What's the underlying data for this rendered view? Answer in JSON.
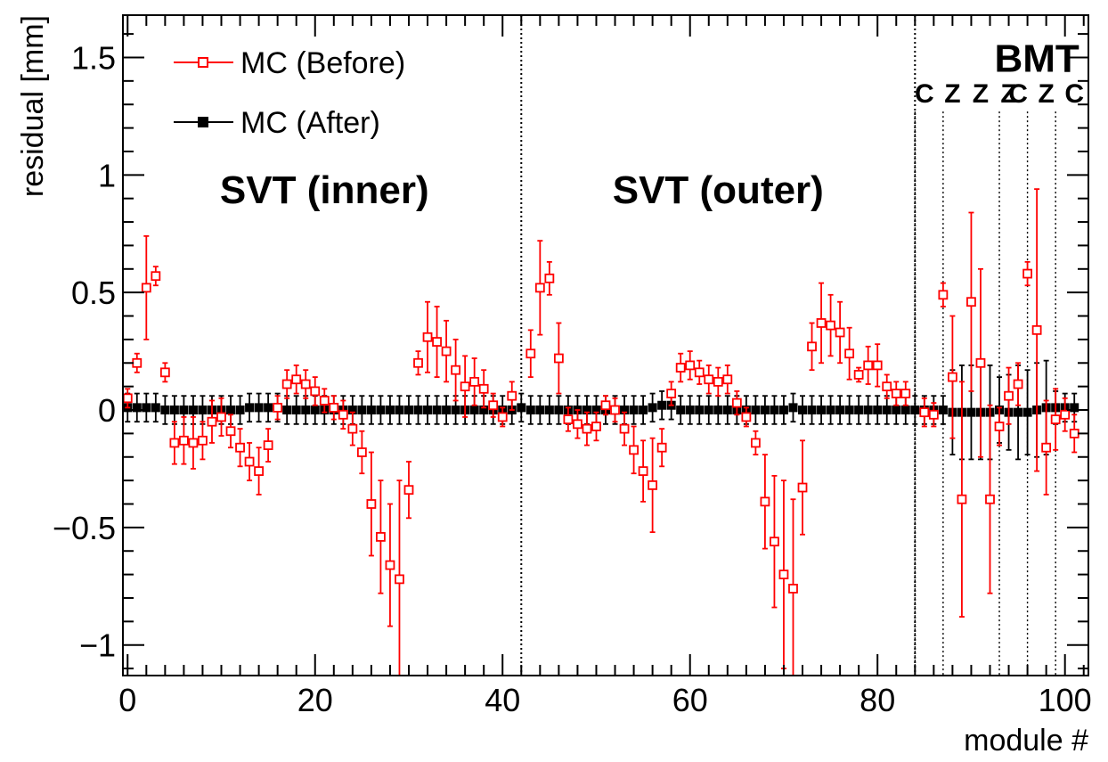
{
  "chart_data": {
    "type": "scatter",
    "title": "",
    "xlabel": "module #",
    "ylabel": "residual [mm]",
    "xlim": [
      -0.5,
      102.5
    ],
    "ylim": [
      -1.13,
      1.68
    ],
    "x_ticks": [
      0,
      20,
      40,
      60,
      80,
      100
    ],
    "x_tick_labels": [
      "0",
      "20",
      "40",
      "60",
      "80",
      "100"
    ],
    "y_ticks": [
      -1,
      -0.5,
      0,
      0.5,
      1,
      1.5
    ],
    "y_tick_labels": [
      "−1",
      "−0.5",
      "0",
      "0.5",
      "1",
      "1.5"
    ],
    "grid": false,
    "legend_position": "top-left",
    "region_labels": [
      {
        "text": "SVT (inner)",
        "x": 21,
        "y": 0.88
      },
      {
        "text": "SVT (outer)",
        "x": 63,
        "y": 0.88
      }
    ],
    "detector_label": {
      "text": "BMT",
      "x": 97,
      "y": 1.5
    },
    "boundaries": [
      42,
      84
    ],
    "bmt_boundaries": [
      84,
      87,
      93,
      96,
      99
    ],
    "bmt_sublabels": [
      {
        "text": "C",
        "x": 85
      },
      {
        "text": "Z",
        "x": 88
      },
      {
        "text": "Z",
        "x": 91
      },
      {
        "text": "Z",
        "x": 94
      },
      {
        "text": "C",
        "x": 95
      },
      {
        "text": "Z",
        "x": 98
      },
      {
        "text": "C",
        "x": 101
      }
    ],
    "series": [
      {
        "name": "MC (Before)",
        "color": "#ff0000",
        "marker": "open-square",
        "points": [
          [
            0,
            0.05,
            0.04
          ],
          [
            1,
            0.2,
            0.04
          ],
          [
            2,
            0.52,
            0.22
          ],
          [
            3,
            0.57,
            0.04
          ],
          [
            4,
            0.16,
            0.04
          ],
          [
            5,
            -0.14,
            0.09
          ],
          [
            6,
            -0.13,
            0.1
          ],
          [
            7,
            -0.14,
            0.11
          ],
          [
            8,
            -0.13,
            0.08
          ],
          [
            9,
            -0.05,
            0.09
          ],
          [
            10,
            -0.03,
            0.08
          ],
          [
            11,
            -0.09,
            0.07
          ],
          [
            12,
            -0.16,
            0.08
          ],
          [
            13,
            -0.22,
            0.08
          ],
          [
            14,
            -0.26,
            0.1
          ],
          [
            15,
            -0.15,
            0.07
          ],
          [
            16,
            0.01,
            0.05
          ],
          [
            17,
            0.11,
            0.06
          ],
          [
            18,
            0.13,
            0.06
          ],
          [
            19,
            0.11,
            0.06
          ],
          [
            20,
            0.08,
            0.06
          ],
          [
            21,
            0.04,
            0.05
          ],
          [
            22,
            0.01,
            0.05
          ],
          [
            23,
            -0.02,
            0.06
          ],
          [
            24,
            -0.08,
            0.07
          ],
          [
            25,
            -0.18,
            0.09
          ],
          [
            26,
            -0.4,
            0.22
          ],
          [
            27,
            -0.54,
            0.24
          ],
          [
            28,
            -0.66,
            0.26
          ],
          [
            29,
            -0.72,
            0.42
          ],
          [
            30,
            -0.34,
            0.12
          ],
          [
            31,
            0.2,
            0.05
          ],
          [
            32,
            0.31,
            0.15
          ],
          [
            33,
            0.29,
            0.15
          ],
          [
            34,
            0.25,
            0.13
          ],
          [
            35,
            0.17,
            0.13
          ],
          [
            36,
            0.1,
            0.13
          ],
          [
            37,
            0.12,
            0.1
          ],
          [
            38,
            0.09,
            0.08
          ],
          [
            39,
            0.02,
            0.05
          ],
          [
            40,
            -0.03,
            0.04
          ],
          [
            41,
            0.06,
            0.06
          ],
          [
            42,
            0.0,
            0.0
          ],
          [
            43,
            0.24,
            0.1
          ],
          [
            44,
            0.52,
            0.2
          ],
          [
            45,
            0.56,
            0.07
          ],
          [
            46,
            0.22,
            0.15
          ],
          [
            47,
            -0.04,
            0.05
          ],
          [
            48,
            -0.06,
            0.06
          ],
          [
            49,
            -0.08,
            0.07
          ],
          [
            50,
            -0.07,
            0.06
          ],
          [
            51,
            0.02,
            0.04
          ],
          [
            52,
            0.0,
            0.05
          ],
          [
            53,
            -0.08,
            0.07
          ],
          [
            54,
            -0.17,
            0.1
          ],
          [
            55,
            -0.26,
            0.13
          ],
          [
            56,
            -0.32,
            0.2
          ],
          [
            57,
            -0.16,
            0.08
          ],
          [
            58,
            0.07,
            0.05
          ],
          [
            59,
            0.18,
            0.06
          ],
          [
            60,
            0.19,
            0.06
          ],
          [
            61,
            0.16,
            0.05
          ],
          [
            62,
            0.13,
            0.06
          ],
          [
            63,
            0.12,
            0.06
          ],
          [
            64,
            0.13,
            0.06
          ],
          [
            65,
            0.03,
            0.05
          ],
          [
            66,
            -0.03,
            0.04
          ],
          [
            67,
            -0.14,
            0.05
          ],
          [
            68,
            -0.39,
            0.2
          ],
          [
            69,
            -0.56,
            0.28
          ],
          [
            70,
            -0.7,
            0.4
          ],
          [
            71,
            -0.76,
            0.38
          ],
          [
            72,
            -0.33,
            0.2
          ],
          [
            73,
            0.27,
            0.1
          ],
          [
            74,
            0.37,
            0.17
          ],
          [
            75,
            0.36,
            0.13
          ],
          [
            76,
            0.33,
            0.13
          ],
          [
            77,
            0.24,
            0.11
          ],
          [
            78,
            0.15,
            0.03
          ],
          [
            79,
            0.19,
            0.08
          ],
          [
            80,
            0.19,
            0.09
          ],
          [
            81,
            0.1,
            0.05
          ],
          [
            82,
            0.07,
            0.05
          ],
          [
            83,
            0.07,
            0.05
          ],
          [
            84,
            0.0,
            0.0
          ],
          [
            85,
            -0.01,
            0.06
          ],
          [
            86,
            -0.02,
            0.05
          ],
          [
            87,
            0.49,
            0.05
          ],
          [
            88,
            0.14,
            0.26
          ],
          [
            89,
            -0.38,
            0.5
          ],
          [
            90,
            0.46,
            0.38
          ],
          [
            91,
            0.2,
            0.4
          ],
          [
            92,
            -0.38,
            0.4
          ],
          [
            93,
            -0.07,
            0.08
          ],
          [
            94,
            0.06,
            0.12
          ],
          [
            95,
            0.11,
            0.09
          ],
          [
            96,
            0.58,
            0.05
          ],
          [
            97,
            0.34,
            0.6
          ],
          [
            98,
            -0.16,
            0.2
          ],
          [
            99,
            -0.04,
            0.13
          ],
          [
            100,
            -0.02,
            0.07
          ],
          [
            101,
            -0.1,
            0.08
          ]
        ]
      },
      {
        "name": "MC (After)",
        "color": "#000000",
        "marker": "filled-square",
        "points": [
          [
            0,
            0.01,
            0.06
          ],
          [
            1,
            0.01,
            0.06
          ],
          [
            2,
            0.01,
            0.06
          ],
          [
            3,
            0.01,
            0.06
          ],
          [
            4,
            0.0,
            0.06
          ],
          [
            5,
            0.0,
            0.06
          ],
          [
            6,
            0.0,
            0.06
          ],
          [
            7,
            0.0,
            0.06
          ],
          [
            8,
            0.0,
            0.06
          ],
          [
            9,
            0.0,
            0.06
          ],
          [
            10,
            0.0,
            0.06
          ],
          [
            11,
            0.0,
            0.06
          ],
          [
            12,
            0.0,
            0.06
          ],
          [
            13,
            0.01,
            0.06
          ],
          [
            14,
            0.01,
            0.06
          ],
          [
            15,
            0.01,
            0.06
          ],
          [
            16,
            0.01,
            0.06
          ],
          [
            17,
            0.0,
            0.06
          ],
          [
            18,
            0.0,
            0.06
          ],
          [
            19,
            0.0,
            0.06
          ],
          [
            20,
            0.0,
            0.06
          ],
          [
            21,
            0.0,
            0.06
          ],
          [
            22,
            0.0,
            0.06
          ],
          [
            23,
            0.0,
            0.06
          ],
          [
            24,
            0.0,
            0.06
          ],
          [
            25,
            0.0,
            0.06
          ],
          [
            26,
            0.0,
            0.06
          ],
          [
            27,
            0.0,
            0.06
          ],
          [
            28,
            0.0,
            0.06
          ],
          [
            29,
            0.0,
            0.06
          ],
          [
            30,
            0.0,
            0.06
          ],
          [
            31,
            0.0,
            0.06
          ],
          [
            32,
            0.0,
            0.06
          ],
          [
            33,
            0.0,
            0.06
          ],
          [
            34,
            0.0,
            0.06
          ],
          [
            35,
            0.0,
            0.06
          ],
          [
            36,
            0.0,
            0.06
          ],
          [
            37,
            0.0,
            0.06
          ],
          [
            38,
            0.0,
            0.06
          ],
          [
            39,
            0.0,
            0.06
          ],
          [
            40,
            0.0,
            0.06
          ],
          [
            41,
            0.0,
            0.06
          ],
          [
            42,
            0.01,
            0.06
          ],
          [
            43,
            0.0,
            0.06
          ],
          [
            44,
            0.0,
            0.06
          ],
          [
            45,
            0.0,
            0.06
          ],
          [
            46,
            0.0,
            0.06
          ],
          [
            47,
            0.0,
            0.06
          ],
          [
            48,
            0.0,
            0.06
          ],
          [
            49,
            0.0,
            0.06
          ],
          [
            50,
            0.0,
            0.06
          ],
          [
            51,
            0.0,
            0.06
          ],
          [
            52,
            0.0,
            0.06
          ],
          [
            53,
            0.0,
            0.06
          ],
          [
            54,
            0.0,
            0.06
          ],
          [
            55,
            0.0,
            0.06
          ],
          [
            56,
            0.01,
            0.06
          ],
          [
            57,
            0.02,
            0.06
          ],
          [
            58,
            0.02,
            0.06
          ],
          [
            59,
            0.0,
            0.06
          ],
          [
            60,
            0.0,
            0.06
          ],
          [
            61,
            0.0,
            0.06
          ],
          [
            62,
            0.0,
            0.06
          ],
          [
            63,
            0.0,
            0.06
          ],
          [
            64,
            0.0,
            0.06
          ],
          [
            65,
            0.0,
            0.06
          ],
          [
            66,
            0.0,
            0.06
          ],
          [
            67,
            0.0,
            0.06
          ],
          [
            68,
            0.0,
            0.06
          ],
          [
            69,
            0.0,
            0.06
          ],
          [
            70,
            0.0,
            0.06
          ],
          [
            71,
            0.01,
            0.06
          ],
          [
            72,
            0.0,
            0.06
          ],
          [
            73,
            0.0,
            0.06
          ],
          [
            74,
            0.0,
            0.06
          ],
          [
            75,
            0.0,
            0.06
          ],
          [
            76,
            0.0,
            0.06
          ],
          [
            77,
            0.0,
            0.06
          ],
          [
            78,
            0.0,
            0.06
          ],
          [
            79,
            0.0,
            0.06
          ],
          [
            80,
            0.0,
            0.06
          ],
          [
            81,
            0.0,
            0.06
          ],
          [
            82,
            0.0,
            0.06
          ],
          [
            83,
            0.0,
            0.06
          ],
          [
            84,
            0.0,
            0.06
          ],
          [
            85,
            0.0,
            0.06
          ],
          [
            86,
            0.0,
            0.06
          ],
          [
            87,
            0.0,
            0.06
          ],
          [
            88,
            -0.01,
            0.18
          ],
          [
            89,
            -0.01,
            0.2
          ],
          [
            90,
            -0.01,
            0.2
          ],
          [
            91,
            -0.01,
            0.2
          ],
          [
            92,
            -0.01,
            0.2
          ],
          [
            93,
            0.0,
            0.14
          ],
          [
            94,
            -0.01,
            0.16
          ],
          [
            95,
            -0.01,
            0.2
          ],
          [
            96,
            -0.01,
            0.18
          ],
          [
            97,
            0.0,
            0.2
          ],
          [
            98,
            0.01,
            0.2
          ],
          [
            99,
            0.01,
            0.07
          ],
          [
            100,
            0.01,
            0.06
          ],
          [
            101,
            0.01,
            0.06
          ]
        ]
      }
    ]
  }
}
